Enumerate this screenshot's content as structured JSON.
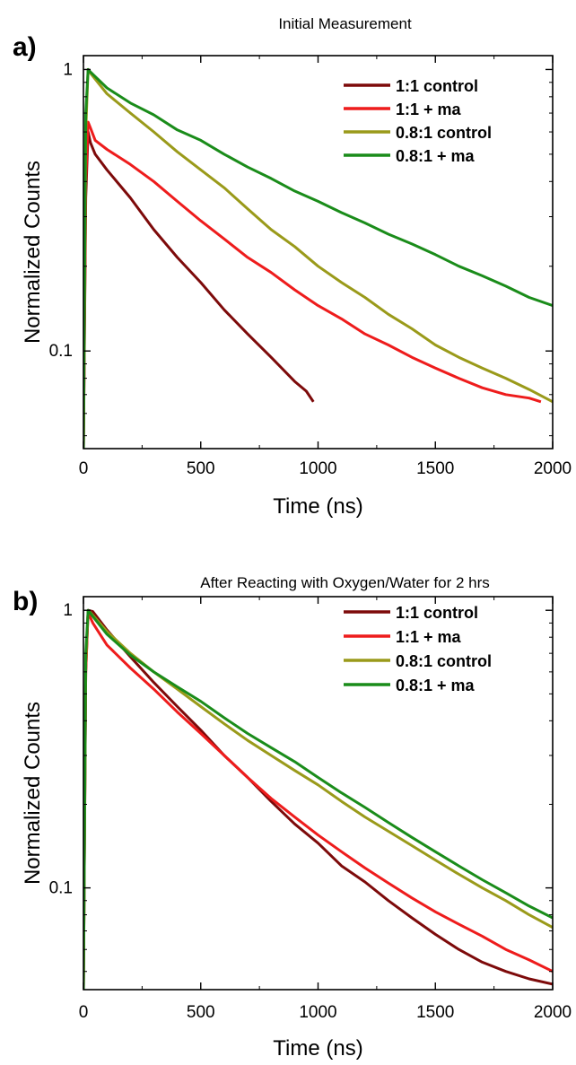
{
  "panels": [
    {
      "label": "a)",
      "title": "Initial Measurement",
      "chart_data": {
        "type": "line",
        "title": "Initial Measurement",
        "xlabel": "Time (ns)",
        "ylabel": "Normalized Counts",
        "xlim": [
          0,
          2000
        ],
        "ylim": [
          0.045,
          1.12
        ],
        "yscale": "log",
        "xticks": [
          0,
          500,
          1000,
          1500,
          2000
        ],
        "xtick_labels": [
          "0",
          "500",
          "1000",
          "1500",
          "2000"
        ],
        "yticks": [
          0.1,
          1
        ],
        "ytick_labels": [
          "0.1",
          "1"
        ],
        "grid": false,
        "legend_position": "top-right",
        "series": [
          {
            "name": "1:1 control",
            "color": "#7d0a0a",
            "x": [
              0,
              10,
              20,
              30,
              50,
              100,
              200,
              300,
              400,
              500,
              600,
              700,
              800,
              900,
              950,
              980
            ],
            "y": [
              0.045,
              0.35,
              0.6,
              0.55,
              0.5,
              0.44,
              0.35,
              0.27,
              0.215,
              0.175,
              0.14,
              0.115,
              0.095,
              0.078,
              0.072,
              0.066
            ]
          },
          {
            "name": "1:1 + ma",
            "color": "#ee1c1c",
            "x": [
              0,
              10,
              20,
              30,
              50,
              100,
              200,
              300,
              400,
              500,
              600,
              700,
              800,
              900,
              1000,
              1100,
              1200,
              1300,
              1400,
              1500,
              1600,
              1700,
              1800,
              1900,
              1950
            ],
            "y": [
              0.045,
              0.4,
              0.65,
              0.62,
              0.56,
              0.52,
              0.46,
              0.4,
              0.34,
              0.29,
              0.25,
              0.215,
              0.19,
              0.165,
              0.145,
              0.13,
              0.115,
              0.105,
              0.095,
              0.087,
              0.08,
              0.074,
              0.07,
              0.068,
              0.066
            ]
          },
          {
            "name": "0.8:1 control",
            "color": "#9a9a1a",
            "x": [
              0,
              10,
              20,
              30,
              100,
              200,
              300,
              400,
              500,
              600,
              700,
              800,
              900,
              1000,
              1100,
              1200,
              1300,
              1400,
              1500,
              1600,
              1700,
              1800,
              1900,
              2000
            ],
            "y": [
              0.045,
              0.6,
              1.0,
              0.97,
              0.82,
              0.7,
              0.6,
              0.51,
              0.44,
              0.38,
              0.32,
              0.27,
              0.235,
              0.2,
              0.175,
              0.155,
              0.135,
              0.12,
              0.105,
              0.095,
              0.087,
              0.08,
              0.073,
              0.066
            ]
          },
          {
            "name": "0.8:1 + ma",
            "color": "#1a8c1a",
            "x": [
              0,
              10,
              20,
              30,
              100,
              200,
              300,
              400,
              500,
              600,
              700,
              800,
              900,
              1000,
              1100,
              1200,
              1300,
              1400,
              1500,
              1600,
              1700,
              1800,
              1900,
              2000
            ],
            "y": [
              0.045,
              0.7,
              1.0,
              0.98,
              0.86,
              0.76,
              0.69,
              0.61,
              0.56,
              0.5,
              0.45,
              0.41,
              0.37,
              0.34,
              0.31,
              0.285,
              0.26,
              0.24,
              0.22,
              0.2,
              0.185,
              0.17,
              0.155,
              0.145
            ]
          }
        ]
      }
    },
    {
      "label": "b)",
      "title": "After Reacting with Oxygen/Water for 2 hrs",
      "chart_data": {
        "type": "line",
        "title": "After Reacting with Oxygen/Water for 2 hrs",
        "xlabel": "Time (ns)",
        "ylabel": "Normalized Counts",
        "xlim": [
          0,
          2000
        ],
        "ylim": [
          0.043,
          1.12
        ],
        "yscale": "log",
        "xticks": [
          0,
          500,
          1000,
          1500,
          2000
        ],
        "xtick_labels": [
          "0",
          "500",
          "1000",
          "1500",
          "2000"
        ],
        "yticks": [
          0.1,
          1
        ],
        "ytick_labels": [
          "0.1",
          "1"
        ],
        "grid": false,
        "legend_position": "top-right",
        "series": [
          {
            "name": "1:1 control",
            "color": "#7d0a0a",
            "x": [
              0,
              10,
              20,
              40,
              100,
              200,
              300,
              400,
              500,
              600,
              700,
              800,
              900,
              1000,
              1100,
              1200,
              1300,
              1400,
              1500,
              1600,
              1700,
              1800,
              1900,
              2000
            ],
            "y": [
              0.043,
              0.6,
              1.0,
              0.99,
              0.85,
              0.68,
              0.55,
              0.45,
              0.37,
              0.3,
              0.25,
              0.205,
              0.17,
              0.145,
              0.12,
              0.105,
              0.09,
              0.078,
              0.068,
              0.06,
              0.054,
              0.05,
              0.047,
              0.045
            ]
          },
          {
            "name": "1:1 + ma",
            "color": "#ee1c1c",
            "x": [
              0,
              10,
              20,
              40,
              100,
              200,
              300,
              400,
              500,
              600,
              700,
              800,
              900,
              1000,
              1100,
              1200,
              1300,
              1400,
              1500,
              1600,
              1700,
              1800,
              1900,
              2000
            ],
            "y": [
              0.043,
              0.6,
              0.98,
              0.9,
              0.75,
              0.62,
              0.52,
              0.43,
              0.36,
              0.3,
              0.25,
              0.21,
              0.18,
              0.155,
              0.135,
              0.118,
              0.104,
              0.092,
              0.082,
              0.074,
              0.067,
              0.06,
              0.055,
              0.05
            ]
          },
          {
            "name": "0.8:1 control",
            "color": "#9a9a1a",
            "x": [
              0,
              10,
              20,
              40,
              100,
              200,
              300,
              400,
              500,
              600,
              700,
              800,
              900,
              1000,
              1100,
              1200,
              1300,
              1400,
              1500,
              1600,
              1700,
              1800,
              1900,
              2000
            ],
            "y": [
              0.043,
              0.65,
              1.0,
              0.96,
              0.84,
              0.7,
              0.6,
              0.52,
              0.45,
              0.39,
              0.34,
              0.3,
              0.265,
              0.235,
              0.205,
              0.18,
              0.16,
              0.142,
              0.126,
              0.112,
              0.1,
              0.09,
              0.08,
              0.072
            ]
          },
          {
            "name": "0.8:1 + ma",
            "color": "#1a8c1a",
            "x": [
              0,
              10,
              20,
              40,
              100,
              200,
              300,
              400,
              500,
              600,
              700,
              800,
              900,
              1000,
              1100,
              1200,
              1300,
              1400,
              1500,
              1600,
              1700,
              1800,
              1900,
              2000
            ],
            "y": [
              0.043,
              0.7,
              1.0,
              0.95,
              0.82,
              0.69,
              0.6,
              0.53,
              0.47,
              0.41,
              0.36,
              0.32,
              0.285,
              0.25,
              0.22,
              0.195,
              0.172,
              0.152,
              0.135,
              0.12,
              0.107,
              0.096,
              0.086,
              0.078
            ]
          }
        ]
      }
    }
  ]
}
